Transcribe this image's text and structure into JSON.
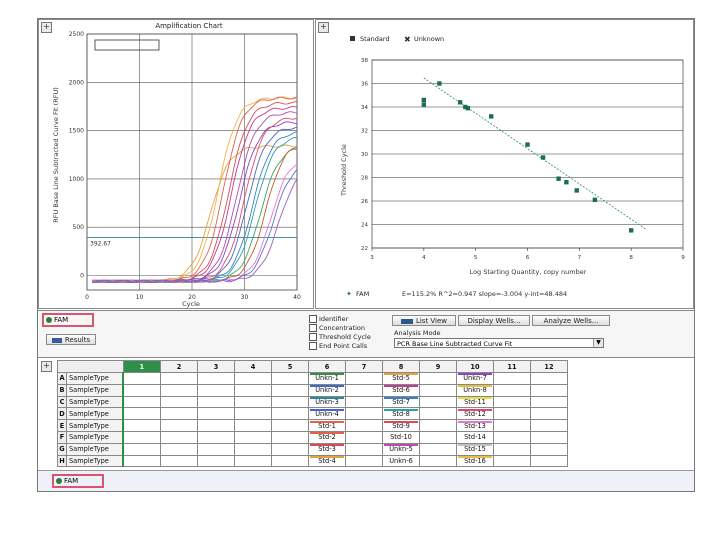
{
  "amp_chart": {
    "title": "Amplification Chart",
    "y_axis_label": "RFU Base Line Subtracted Curve Fit (RFU)",
    "x_axis_label": "Cycle",
    "y_ticks": [
      "2500",
      "2000",
      "1500",
      "1000",
      "500",
      "0"
    ],
    "x_ticks": [
      "0",
      "10",
      "20",
      "30",
      "40"
    ],
    "threshold_label": "392.67",
    "chart_data": {
      "type": "line",
      "xlabel": "Cycle",
      "ylabel": "RFU Base Line Subtracted Curve Fit (RFU)",
      "xlim": [
        0,
        40
      ],
      "ylim": [
        -150,
        2500
      ],
      "threshold": 392.67,
      "series_colors": [
        "#e8a23c",
        "#f2b24a",
        "#e3624e",
        "#d94a5a",
        "#c43a8a",
        "#b84bb5",
        "#8a46c2",
        "#e04a6a",
        "#4a64c8",
        "#3a80c8",
        "#2aa0a8",
        "#3aa66a",
        "#c85a2a",
        "#e07ad0",
        "#6070d8",
        "#a05ac8"
      ],
      "series_midpoints": [
        23.5,
        25,
        26,
        27,
        27.5,
        28.5,
        29,
        30,
        30.5,
        31.5,
        32,
        33,
        34,
        35,
        35.5,
        36.5
      ],
      "series_plateaus": [
        1400,
        1900,
        1900,
        1850,
        1800,
        1750,
        1650,
        1700,
        1600,
        1550,
        1500,
        1400,
        1450,
        1300,
        1250,
        1200
      ]
    }
  },
  "std_chart": {
    "legend": [
      {
        "label": "Standard",
        "symbol": "square"
      },
      {
        "label": "Unknown",
        "symbol": "x"
      }
    ],
    "y_axis_label": "Threshold Cycle",
    "x_axis_label": "Log Starting Quantity, copy number",
    "y_ticks": [
      "38",
      "36",
      "34",
      "32",
      "30",
      "28",
      "26",
      "24",
      "22"
    ],
    "x_ticks": [
      "3",
      "4",
      "5",
      "6",
      "7",
      "8",
      "9"
    ],
    "footer_legend": "FAM",
    "footer_stats": "E=115.2% R^2=0.947 slope=-3.004 y-int=48.484",
    "chart_data": {
      "type": "scatter",
      "xlabel": "Log Starting Quantity, copy number",
      "ylabel": "Threshold Cycle",
      "xlim": [
        3,
        9
      ],
      "ylim": [
        22,
        38
      ],
      "series": [
        {
          "name": "Standard",
          "points": [
            [
              4.0,
              34.2
            ],
            [
              4.0,
              34.6
            ],
            [
              4.3,
              36.0
            ],
            [
              4.7,
              34.4
            ],
            [
              4.8,
              34.0
            ],
            [
              4.85,
              33.9
            ],
            [
              5.3,
              33.2
            ],
            [
              6.0,
              30.8
            ],
            [
              6.3,
              29.7
            ],
            [
              6.6,
              27.9
            ],
            [
              6.75,
              27.6
            ],
            [
              6.95,
              26.9
            ],
            [
              7.3,
              26.1
            ],
            [
              8.0,
              23.5
            ]
          ]
        }
      ],
      "fit_line": {
        "slope": -3.004,
        "intercept": 48.484,
        "x_range": [
          4.0,
          8.3
        ]
      }
    }
  },
  "controls": {
    "fluor_tab": "FAM",
    "results_button": "Results",
    "checkboxes": [
      "Identifier",
      "Concentration",
      "Threshold Cycle",
      "End Point Calls"
    ],
    "list_view_button": "List View",
    "display_wells_button": "Display Wells...",
    "analyze_wells_button": "Analyze Wells...",
    "analysis_mode_label": "Analysis Mode",
    "analysis_mode_value": "PCR Base Line Subtracted Curve Fit"
  },
  "plate": {
    "columns": [
      "1",
      "2",
      "3",
      "4",
      "5",
      "6",
      "7",
      "8",
      "9",
      "10",
      "11",
      "12"
    ],
    "rows": [
      {
        "letter": "A",
        "type": "SampleType",
        "wells": {
          "6": "Unkn-1",
          "8": "Std-5",
          "10": "Unkn-7"
        }
      },
      {
        "letter": "B",
        "type": "SampleType",
        "wells": {
          "6": "Unkn-2",
          "8": "Std-6",
          "10": "Unkn-8"
        }
      },
      {
        "letter": "C",
        "type": "SampleType",
        "wells": {
          "6": "Unkn-3",
          "8": "Std-7",
          "10": "Std-11"
        }
      },
      {
        "letter": "D",
        "type": "SampleType",
        "wells": {
          "6": "Unkn-4",
          "8": "Std-8",
          "10": "Std-12"
        }
      },
      {
        "letter": "E",
        "type": "SampleType",
        "wells": {
          "6": "Std-1",
          "8": "Std-9",
          "10": "Std-13"
        }
      },
      {
        "letter": "F",
        "type": "SampleType",
        "wells": {
          "6": "Std-2",
          "8": "Std-10",
          "10": "Std-14"
        }
      },
      {
        "letter": "G",
        "type": "SampleType",
        "wells": {
          "6": "Std-3",
          "8": "Unkn-5",
          "10": "Std-15"
        }
      },
      {
        "letter": "H",
        "type": "SampleType",
        "wells": {
          "6": "Std-4",
          "8": "Unkn-6",
          "10": "Std-16"
        }
      }
    ],
    "well_colors": {
      "A6": "#3a8a4a",
      "A8": "#e8a23c",
      "A10": "#8a46c2",
      "B6": "#3a6ac8",
      "B8": "#c43a8a",
      "B10": "#e0c040",
      "C6": "#2a8a9a",
      "C8": "#3a80c8",
      "C10": "#e8e040",
      "D6": "#4a64c8",
      "D8": "#2aa0a8",
      "D10": "#e04a6a",
      "E6": "#e3624e",
      "E8": "#d94a5a",
      "E10": "#e07ad0",
      "F6": "#e3624e",
      "F8": "",
      "F10": "",
      "G6": "#d94a5a",
      "G8": "#b84bb5",
      "G10": "#c0c0c0",
      "H6": "#e8a23c",
      "H8": "",
      "H10": "#e8c040"
    }
  },
  "status": {
    "fluor_label": "FAM"
  }
}
